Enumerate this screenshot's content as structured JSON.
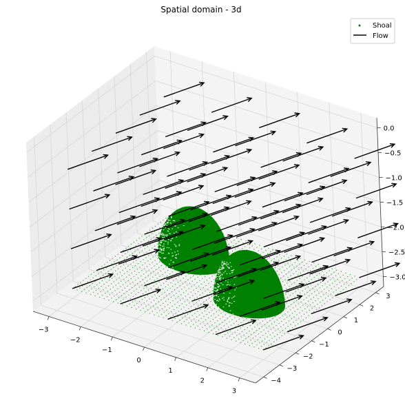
{
  "chart_data": {
    "type": "scatter-3d-quiver",
    "title": "Spatial domain - 3d",
    "xlabel": "",
    "ylabel": "",
    "zlabel": "",
    "xlim": [
      -3.5,
      3.5
    ],
    "ylim": [
      -4.5,
      3.5
    ],
    "zlim": [
      -3.2,
      0.2
    ],
    "x_ticks": [
      "−3",
      "−2",
      "−1",
      "0",
      "1",
      "2",
      "3"
    ],
    "y_ticks": [
      "−4",
      "−3",
      "−2",
      "−1",
      "0",
      "1",
      "2",
      "3"
    ],
    "z_ticks": [
      "0.0",
      "−0.5",
      "−1.0",
      "−1.5",
      "−2.0",
      "−2.5",
      "−3.0"
    ],
    "legend": {
      "placement": "top-right",
      "entries": [
        {
          "label": "Shoal",
          "marker": "point",
          "color": "#008000"
        },
        {
          "label": "Flow",
          "marker": "line",
          "color": "#000000"
        }
      ]
    },
    "series": [
      {
        "name": "Shoal",
        "kind": "scatter",
        "color": "#008000",
        "floor_z": -3.0,
        "floor_x_range": [
          -3.0,
          3.0
        ],
        "floor_y_range": [
          -3.0,
          3.0
        ],
        "mounds": [
          {
            "center_x": -1.2,
            "center_y": 1.0,
            "radius": 1.0,
            "peak_z": -2.0
          },
          {
            "center_x": 1.3,
            "center_y": -0.5,
            "radius": 1.0,
            "peak_z": -2.0
          }
        ]
      },
      {
        "name": "Flow",
        "kind": "quiver",
        "color": "#000000",
        "x_values": [
          -3,
          -1.5,
          0,
          1.5,
          3
        ],
        "y_values": [
          -3,
          -1.5,
          0,
          1.5,
          3
        ],
        "z_values": [
          -3,
          -2.2,
          -1.4,
          -0.6
        ],
        "direction": [
          1,
          1,
          0.3
        ]
      }
    ]
  }
}
